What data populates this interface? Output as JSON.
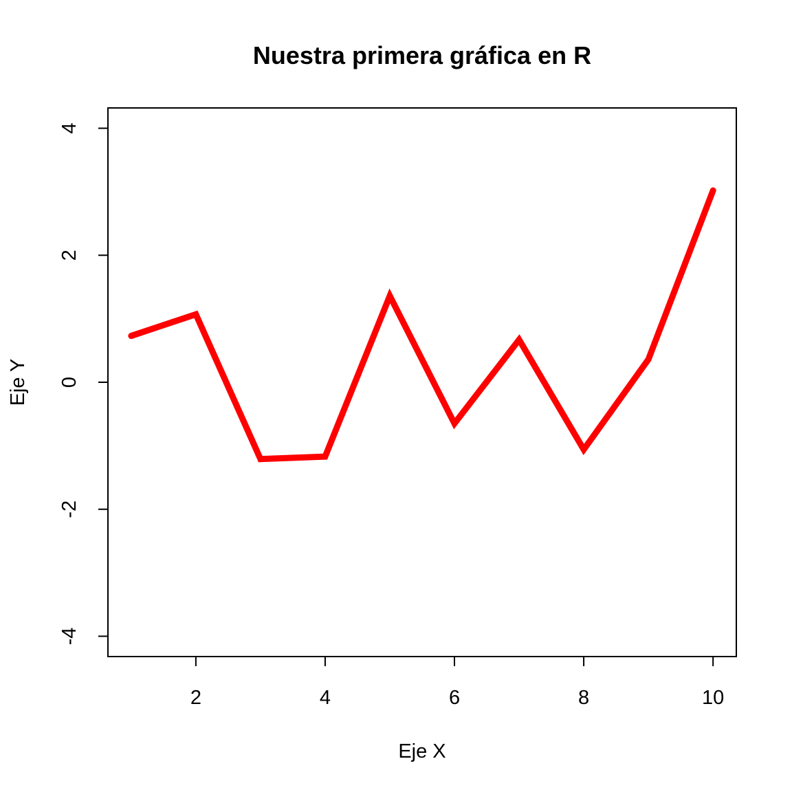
{
  "chart_data": {
    "type": "line",
    "title": "Nuestra primera gráfica en R",
    "xlabel": "Eje X",
    "ylabel": "Eje Y",
    "x": [
      1,
      2,
      3,
      4,
      5,
      6,
      7,
      8,
      9,
      10
    ],
    "series": [
      {
        "values": [
          0.73,
          1.07,
          -1.21,
          -1.17,
          1.36,
          -0.65,
          0.67,
          -1.06,
          0.36,
          3.02
        ],
        "color": "#ff0000"
      }
    ],
    "xlim": [
      0.64,
      10.36
    ],
    "ylim": [
      -4.32,
      4.32
    ],
    "xticks": [
      "2",
      "4",
      "6",
      "8",
      "10"
    ],
    "yticks": [
      "-4",
      "-2",
      "0",
      "2",
      "4"
    ],
    "grid": false,
    "legend": "none"
  }
}
